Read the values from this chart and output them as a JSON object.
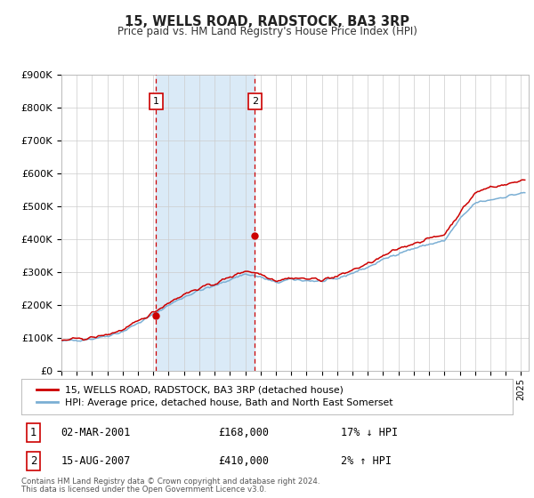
{
  "title": "15, WELLS ROAD, RADSTOCK, BA3 3RP",
  "subtitle": "Price paid vs. HM Land Registry's House Price Index (HPI)",
  "legend_line1": "15, WELLS ROAD, RADSTOCK, BA3 3RP (detached house)",
  "legend_line2": "HPI: Average price, detached house, Bath and North East Somerset",
  "footnote1": "Contains HM Land Registry data © Crown copyright and database right 2024.",
  "footnote2": "This data is licensed under the Open Government Licence v3.0.",
  "point1_label": "1",
  "point1_date": "02-MAR-2001",
  "point1_price": "£168,000",
  "point1_hpi": "17% ↓ HPI",
  "point2_label": "2",
  "point2_date": "15-AUG-2007",
  "point2_price": "£410,000",
  "point2_hpi": "2% ↑ HPI",
  "red_color": "#cc0000",
  "blue_color": "#7bafd4",
  "blue_fill": "#daeaf7",
  "bg_color": "#ffffff",
  "grid_color": "#cccccc",
  "ylim": [
    0,
    900000
  ],
  "yticks": [
    0,
    100000,
    200000,
    300000,
    400000,
    500000,
    600000,
    700000,
    800000,
    900000
  ],
  "ytick_labels": [
    "£0",
    "£100K",
    "£200K",
    "£300K",
    "£400K",
    "£500K",
    "£600K",
    "£700K",
    "£800K",
    "£900K"
  ],
  "xlim_start": 1995.0,
  "xlim_end": 2025.5,
  "point1_x": 2001.17,
  "point1_y": 168000,
  "point2_x": 2007.62,
  "point2_y": 410000
}
